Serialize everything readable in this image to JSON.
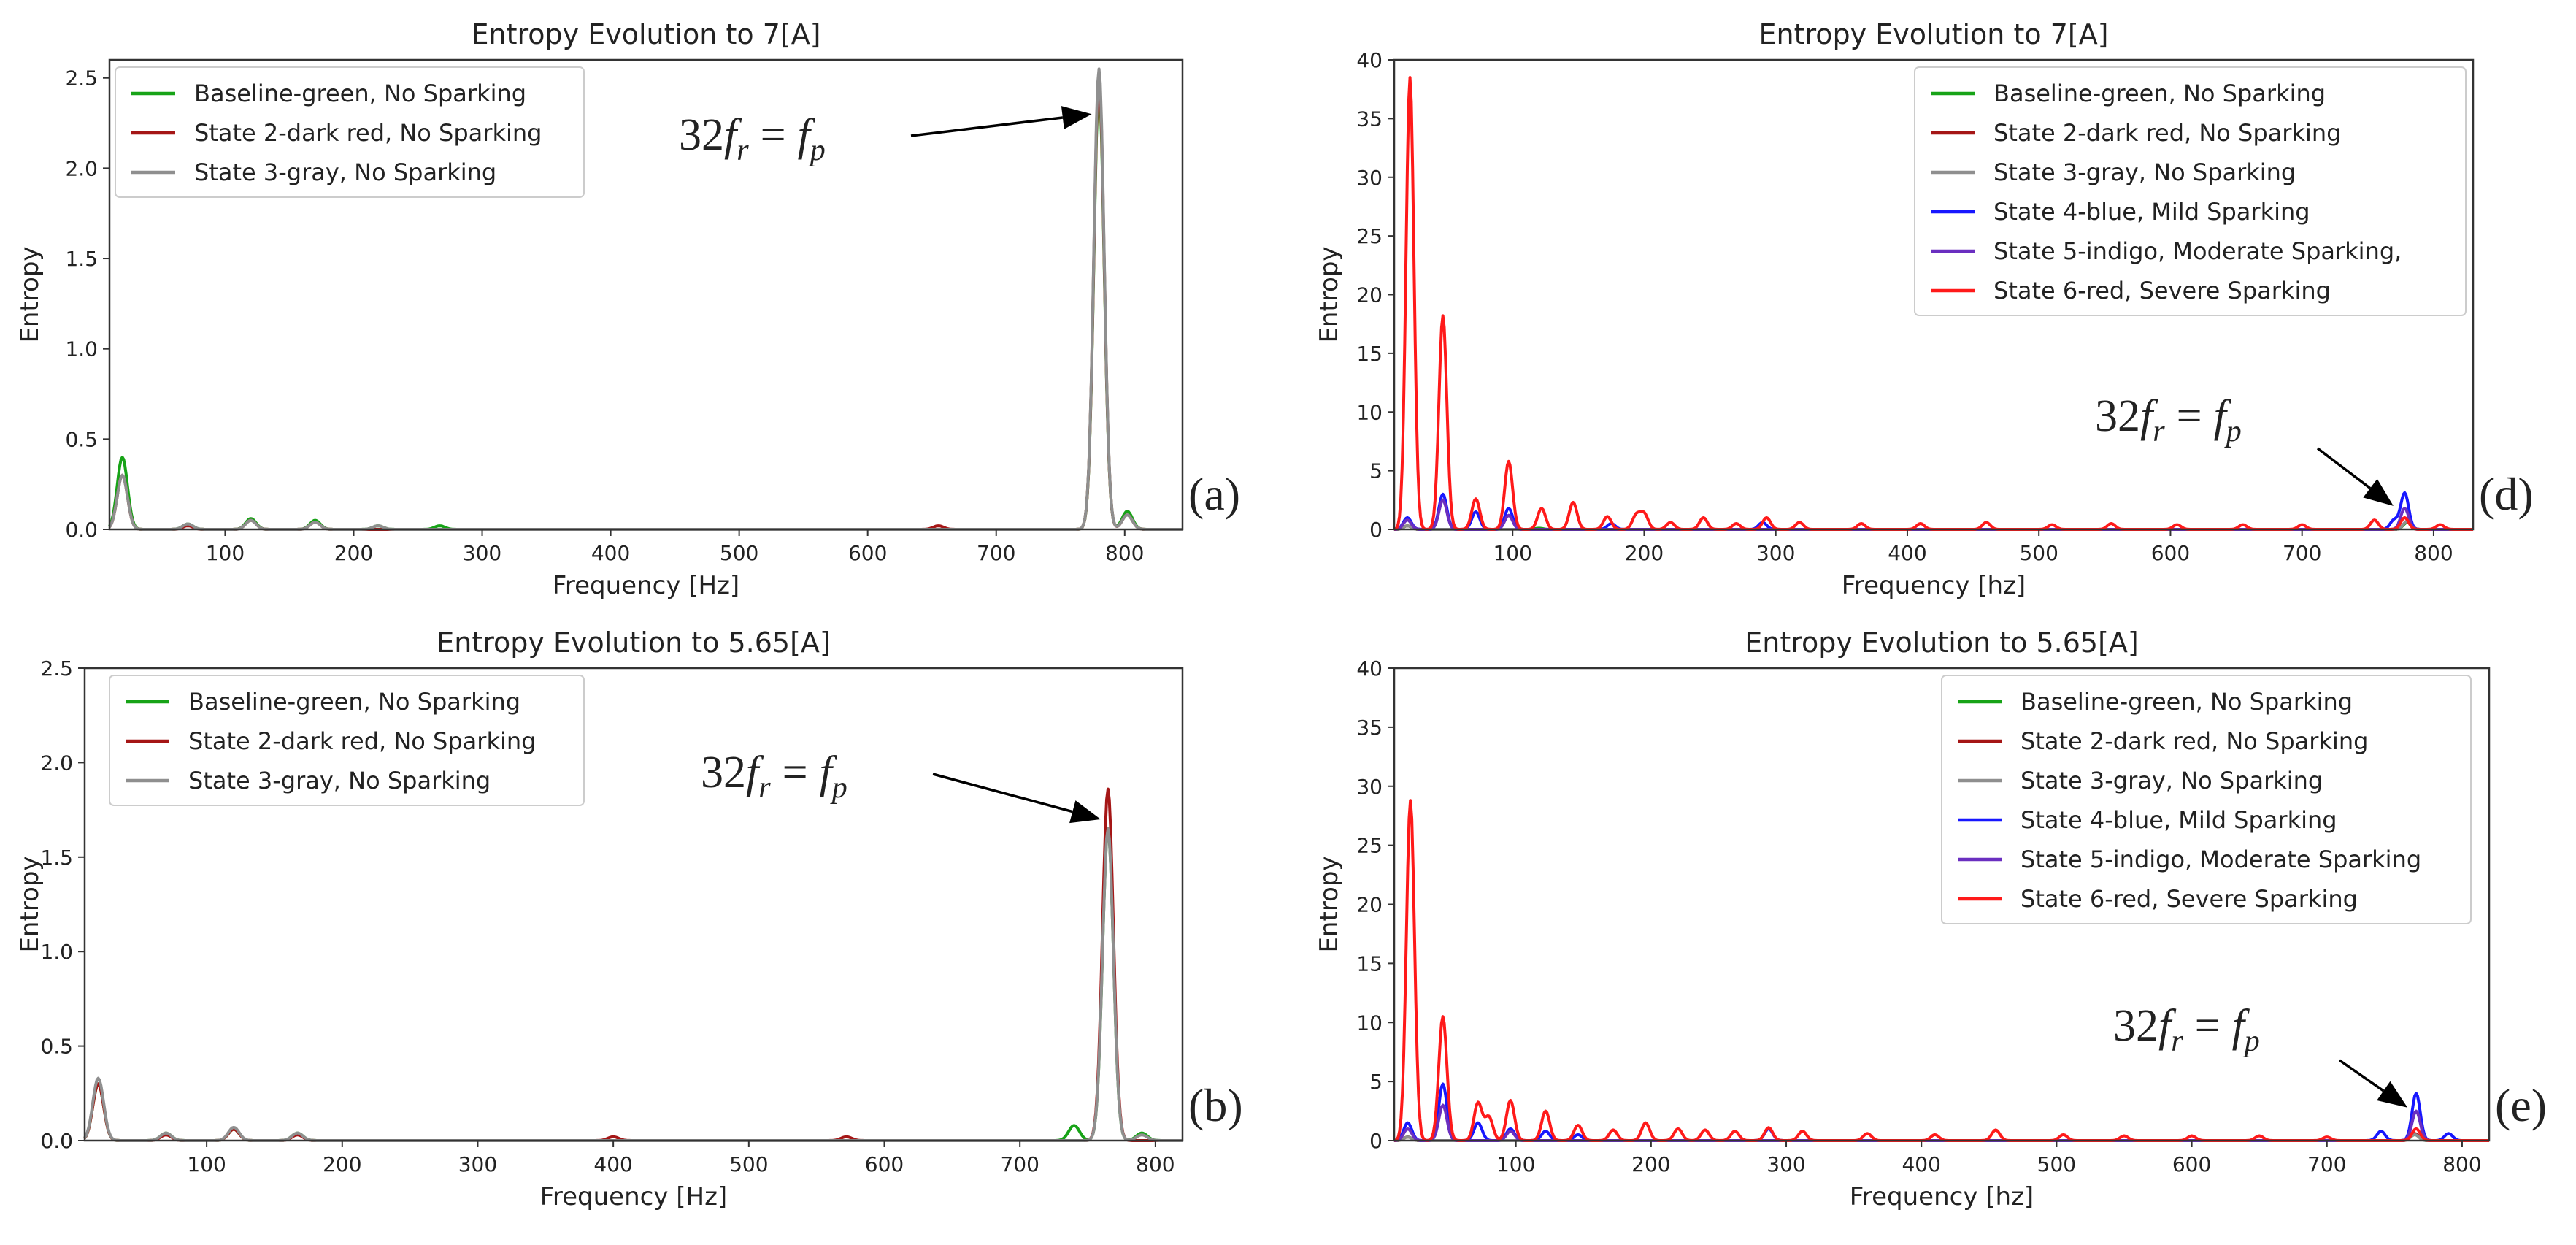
{
  "colors": {
    "green": "#17a317",
    "darkred": "#a51616",
    "gray": "#8f8f8f",
    "blue": "#1717ff",
    "indigo": "#6a2fc0",
    "red": "#ff1a1a",
    "axis": "#333333"
  },
  "chart_data": [
    {
      "id": "a",
      "type": "line",
      "title": "Entropy Evolution to 7[A]",
      "xlabel": "Frequency [Hz]",
      "ylabel": "Entropy",
      "xlim": [
        10,
        845
      ],
      "ylim": [
        0,
        2.6
      ],
      "xticks": [
        100,
        200,
        300,
        400,
        500,
        600,
        700,
        800
      ],
      "yticks": [
        0.0,
        0.5,
        1.0,
        1.5,
        2.0,
        2.5
      ],
      "ytick_labels": [
        "0.0",
        "0.5",
        "1.0",
        "1.5",
        "2.0",
        "2.5"
      ],
      "panel_label": "(a)",
      "annotation": "32f_r = f_p",
      "annotation_parts": {
        "coef": "32",
        "f1": "f",
        "sub1": "r",
        "eq": "=",
        "f2": "f",
        "sub2": "p"
      },
      "arrow_to": [
        780,
        2.3
      ],
      "legend_position": "upper-left",
      "peak_width": 4,
      "series": [
        {
          "name": "Baseline-green, No Sparking",
          "color": "green",
          "peaks": [
            [
              20,
              0.4
            ],
            [
              71,
              0.03
            ],
            [
              120,
              0.06
            ],
            [
              170,
              0.05
            ],
            [
              219,
              0.02
            ],
            [
              267,
              0.02
            ],
            [
              780,
              2.45
            ],
            [
              802,
              0.1
            ]
          ]
        },
        {
          "name": "State 2-dark red, No Sparking",
          "color": "darkred",
          "peaks": [
            [
              20,
              0.3
            ],
            [
              71,
              0.02
            ],
            [
              120,
              0.05
            ],
            [
              170,
              0.04
            ],
            [
              655,
              0.02
            ],
            [
              780,
              2.5
            ],
            [
              802,
              0.08
            ]
          ]
        },
        {
          "name": "State 3-gray, No Sparking",
          "color": "gray",
          "peaks": [
            [
              20,
              0.3
            ],
            [
              71,
              0.03
            ],
            [
              120,
              0.05
            ],
            [
              170,
              0.04
            ],
            [
              219,
              0.02
            ],
            [
              780,
              2.55
            ],
            [
              802,
              0.08
            ]
          ]
        }
      ]
    },
    {
      "id": "b",
      "type": "line",
      "title": "Entropy Evolution to 5.65[A]",
      "xlabel": "Frequency [Hz]",
      "ylabel": "Entropy",
      "xlim": [
        10,
        820
      ],
      "ylim": [
        0,
        2.5
      ],
      "xticks": [
        100,
        200,
        300,
        400,
        500,
        600,
        700,
        800
      ],
      "yticks": [
        0.0,
        0.5,
        1.0,
        1.5,
        2.0,
        2.5
      ],
      "ytick_labels": [
        "0.0",
        "0.5",
        "1.0",
        "1.5",
        "2.0",
        "2.5"
      ],
      "panel_label": "(b)",
      "annotation": "32f_r = f_p",
      "annotation_parts": {
        "coef": "32",
        "f1": "f",
        "sub1": "r",
        "eq": "=",
        "f2": "f",
        "sub2": "p"
      },
      "arrow_to": [
        765,
        1.7
      ],
      "legend_position": "upper-left",
      "peak_width": 4,
      "series": [
        {
          "name": "Baseline-green, No Sparking",
          "color": "green",
          "peaks": [
            [
              20,
              0.3
            ],
            [
              70,
              0.04
            ],
            [
              120,
              0.06
            ],
            [
              167,
              0.04
            ],
            [
              740,
              0.08
            ],
            [
              765,
              1.65
            ],
            [
              790,
              0.04
            ]
          ]
        },
        {
          "name": "State 2-dark red, No Sparking",
          "color": "darkred",
          "peaks": [
            [
              20,
              0.3
            ],
            [
              70,
              0.03
            ],
            [
              120,
              0.06
            ],
            [
              167,
              0.03
            ],
            [
              400,
              0.02
            ],
            [
              572,
              0.02
            ],
            [
              765,
              1.86
            ]
          ]
        },
        {
          "name": "State 3-gray, No Sparking",
          "color": "gray",
          "peaks": [
            [
              20,
              0.33
            ],
            [
              70,
              0.04
            ],
            [
              120,
              0.07
            ],
            [
              167,
              0.04
            ],
            [
              765,
              1.65
            ],
            [
              790,
              0.03
            ]
          ]
        }
      ]
    },
    {
      "id": "d",
      "type": "line",
      "title": "Entropy Evolution to 7[A]",
      "xlabel": "Frequency [hz]",
      "ylabel": "Entropy",
      "xlim": [
        10,
        830
      ],
      "ylim": [
        0,
        40
      ],
      "xticks": [
        100,
        200,
        300,
        400,
        500,
        600,
        700,
        800
      ],
      "yticks": [
        0,
        5,
        10,
        15,
        20,
        25,
        30,
        35,
        40
      ],
      "ytick_labels": [
        "0",
        "5",
        "10",
        "15",
        "20",
        "25",
        "30",
        "35",
        "40"
      ],
      "panel_label": "(d)",
      "annotation": "32f_r = f_p",
      "annotation_parts": {
        "coef": "32",
        "f1": "f",
        "sub1": "r",
        "eq": "=",
        "f2": "f",
        "sub2": "p"
      },
      "arrow_to": [
        775,
        2.0
      ],
      "legend_position": "upper-right",
      "peak_width": 3,
      "series": [
        {
          "name": "Baseline-green, No Sparking",
          "color": "green",
          "peaks": [
            [
              20,
              0.3
            ],
            [
              120,
              0.1
            ],
            [
              780,
              0.6
            ]
          ]
        },
        {
          "name": "State 2-dark red, No Sparking",
          "color": "darkred",
          "peaks": [
            [
              20,
              0.3
            ],
            [
              780,
              0.7
            ]
          ]
        },
        {
          "name": "State 3-gray, No Sparking",
          "color": "gray",
          "peaks": [
            [
              20,
              0.3
            ],
            [
              780,
              0.7
            ]
          ]
        },
        {
          "name": "State 4-blue, Mild Sparking",
          "color": "blue",
          "peaks": [
            [
              20,
              1.0
            ],
            [
              47,
              3.0
            ],
            [
              72,
              1.5
            ],
            [
              97,
              1.8
            ],
            [
              175,
              0.5
            ],
            [
              290,
              0.6
            ],
            [
              770,
              0.8
            ],
            [
              778,
              3.1
            ]
          ]
        },
        {
          "name": "State 5-indigo, Moderate Sparking,",
          "color": "indigo",
          "peaks": [
            [
              20,
              0.8
            ],
            [
              47,
              2.5
            ],
            [
              97,
              1.2
            ],
            [
              778,
              1.8
            ]
          ]
        },
        {
          "name": "State 6-red, Severe Sparking",
          "color": "red",
          "peaks": [
            [
              22,
              38.5
            ],
            [
              47,
              18.2
            ],
            [
              72,
              2.6
            ],
            [
              97,
              5.8
            ],
            [
              122,
              1.8
            ],
            [
              146,
              2.3
            ],
            [
              172,
              1.1
            ],
            [
              194,
              1.2
            ],
            [
              200,
              1.3
            ],
            [
              220,
              0.6
            ],
            [
              245,
              1.0
            ],
            [
              270,
              0.5
            ],
            [
              293,
              1.0
            ],
            [
              318,
              0.6
            ],
            [
              365,
              0.5
            ],
            [
              410,
              0.5
            ],
            [
              460,
              0.6
            ],
            [
              510,
              0.4
            ],
            [
              555,
              0.5
            ],
            [
              605,
              0.4
            ],
            [
              655,
              0.4
            ],
            [
              700,
              0.4
            ],
            [
              755,
              0.8
            ],
            [
              778,
              1.0
            ],
            [
              805,
              0.4
            ]
          ]
        }
      ]
    },
    {
      "id": "e",
      "type": "line",
      "title": "Entropy Evolution to 5.65[A]",
      "xlabel": "Frequency [hz]",
      "ylabel": "Entropy",
      "xlim": [
        10,
        820
      ],
      "ylim": [
        0,
        40
      ],
      "xticks": [
        100,
        200,
        300,
        400,
        500,
        600,
        700,
        800
      ],
      "yticks": [
        0,
        5,
        10,
        15,
        20,
        25,
        30,
        35,
        40
      ],
      "ytick_labels": [
        "0",
        "5",
        "10",
        "15",
        "20",
        "25",
        "30",
        "35",
        "40"
      ],
      "panel_label": "(e)",
      "annotation": "32f_r = f_p",
      "annotation_parts": {
        "coef": "32",
        "f1": "f",
        "sub1": "r",
        "eq": "=",
        "f2": "f",
        "sub2": "p"
      },
      "arrow_to": [
        765,
        2.8
      ],
      "legend_position": "upper-right",
      "peak_width": 3,
      "series": [
        {
          "name": "Baseline-green, No Sparking",
          "color": "green",
          "peaks": [
            [
              20,
              0.3
            ],
            [
              765,
              0.5
            ]
          ]
        },
        {
          "name": "State 2-dark red, No Sparking",
          "color": "darkred",
          "peaks": [
            [
              20,
              0.3
            ],
            [
              765,
              0.6
            ]
          ]
        },
        {
          "name": "State 3-gray, No Sparking",
          "color": "gray",
          "peaks": [
            [
              20,
              0.3
            ],
            [
              765,
              0.5
            ]
          ]
        },
        {
          "name": "State 4-blue, Mild Sparking",
          "color": "blue",
          "peaks": [
            [
              20,
              1.5
            ],
            [
              46,
              4.8
            ],
            [
              72,
              1.5
            ],
            [
              96,
              1.0
            ],
            [
              122,
              0.8
            ],
            [
              146,
              0.5
            ],
            [
              287,
              1.0
            ],
            [
              740,
              0.8
            ],
            [
              766,
              4.0
            ],
            [
              790,
              0.6
            ]
          ]
        },
        {
          "name": "State 5-indigo, Moderate Sparking",
          "color": "indigo",
          "peaks": [
            [
              20,
              1.0
            ],
            [
              46,
              3.0
            ],
            [
              96,
              0.8
            ],
            [
              766,
              2.5
            ]
          ]
        },
        {
          "name": "State 6-red, Severe Sparking",
          "color": "red",
          "peaks": [
            [
              22,
              28.8
            ],
            [
              46,
              10.5
            ],
            [
              72,
              3.2
            ],
            [
              80,
              2.0
            ],
            [
              96,
              3.4
            ],
            [
              122,
              2.5
            ],
            [
              146,
              1.3
            ],
            [
              172,
              0.9
            ],
            [
              196,
              1.5
            ],
            [
              220,
              1.0
            ],
            [
              240,
              0.9
            ],
            [
              262,
              0.8
            ],
            [
              287,
              1.1
            ],
            [
              312,
              0.8
            ],
            [
              360,
              0.6
            ],
            [
              410,
              0.5
            ],
            [
              455,
              0.9
            ],
            [
              505,
              0.5
            ],
            [
              550,
              0.4
            ],
            [
              600,
              0.4
            ],
            [
              650,
              0.4
            ],
            [
              700,
              0.3
            ],
            [
              766,
              1.0
            ]
          ]
        }
      ]
    }
  ]
}
